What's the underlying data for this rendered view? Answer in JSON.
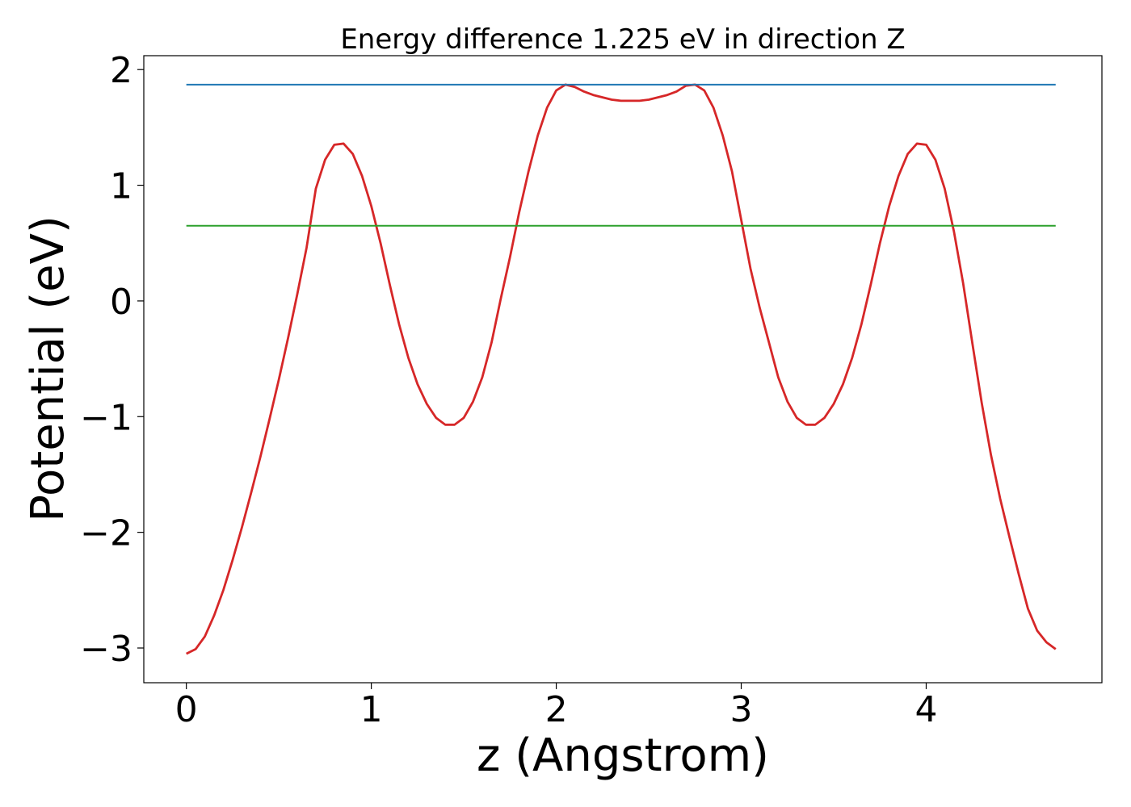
{
  "chart_data": {
    "type": "line",
    "title": "Energy difference 1.225 eV in direction Z",
    "xlabel": "z (Angstrom)",
    "ylabel": "Potential (eV)",
    "xlim": [
      -0.23,
      4.95
    ],
    "ylim": [
      -3.3,
      2.12
    ],
    "xticks": [
      0,
      1,
      2,
      3,
      4
    ],
    "xtick_labels": [
      "0",
      "1",
      "2",
      "3",
      "4"
    ],
    "yticks": [
      -3,
      -2,
      -1,
      0,
      1,
      2
    ],
    "ytick_labels": [
      "−3",
      "−2",
      "−1",
      "0",
      "1",
      "2"
    ],
    "grid": false,
    "series": [
      {
        "color": "#d62728",
        "x": [
          0.0,
          0.05,
          0.1,
          0.15,
          0.2,
          0.25,
          0.3,
          0.35,
          0.4,
          0.45,
          0.5,
          0.55,
          0.6,
          0.65,
          0.7,
          0.75,
          0.8,
          0.85,
          0.9,
          0.95,
          1.0,
          1.05,
          1.1,
          1.15,
          1.2,
          1.25,
          1.3,
          1.35,
          1.4,
          1.45,
          1.5,
          1.55,
          1.6,
          1.65,
          1.7,
          1.75,
          1.8,
          1.85,
          1.9,
          1.95,
          2.0,
          2.05,
          2.1,
          2.15,
          2.2,
          2.25,
          2.3,
          2.35,
          2.4,
          2.45,
          2.5,
          2.55,
          2.6,
          2.65,
          2.7,
          2.75,
          2.8,
          2.85,
          2.9,
          2.95,
          3.0,
          3.05,
          3.1,
          3.15,
          3.2,
          3.25,
          3.3,
          3.35,
          3.4,
          3.45,
          3.5,
          3.55,
          3.6,
          3.65,
          3.7,
          3.75,
          3.8,
          3.85,
          3.9,
          3.95,
          4.0,
          4.05,
          4.1,
          4.15,
          4.2,
          4.25,
          4.3,
          4.35,
          4.4,
          4.45,
          4.5,
          4.55,
          4.6,
          4.65,
          4.7
        ],
        "y": [
          -3.05,
          -3.01,
          -2.9,
          -2.72,
          -2.5,
          -2.24,
          -1.96,
          -1.66,
          -1.35,
          -1.02,
          -0.68,
          -0.32,
          0.06,
          0.46,
          0.97,
          1.22,
          1.35,
          1.36,
          1.27,
          1.08,
          0.82,
          0.5,
          0.14,
          -0.2,
          -0.49,
          -0.72,
          -0.89,
          -1.01,
          -1.07,
          -1.07,
          -1.01,
          -0.87,
          -0.66,
          -0.36,
          0.02,
          0.38,
          0.77,
          1.12,
          1.43,
          1.67,
          1.82,
          1.87,
          1.85,
          1.81,
          1.78,
          1.76,
          1.74,
          1.73,
          1.73,
          1.73,
          1.74,
          1.76,
          1.78,
          1.81,
          1.86,
          1.87,
          1.82,
          1.67,
          1.43,
          1.12,
          0.7,
          0.28,
          -0.06,
          -0.36,
          -0.66,
          -0.87,
          -1.01,
          -1.07,
          -1.07,
          -1.01,
          -0.89,
          -0.72,
          -0.49,
          -0.2,
          0.14,
          0.5,
          0.82,
          1.08,
          1.27,
          1.36,
          1.35,
          1.22,
          0.97,
          0.6,
          0.15,
          -0.37,
          -0.88,
          -1.33,
          -1.71,
          -2.04,
          -2.36,
          -2.66,
          -2.85,
          -2.95,
          -3.01
        ]
      },
      {
        "color": "#1f77b4",
        "x": [
          0.0,
          4.7
        ],
        "y": [
          1.87,
          1.87
        ]
      },
      {
        "color": "#2ca02c",
        "x": [
          0.0,
          4.7
        ],
        "y": [
          0.65,
          0.65
        ]
      }
    ]
  }
}
